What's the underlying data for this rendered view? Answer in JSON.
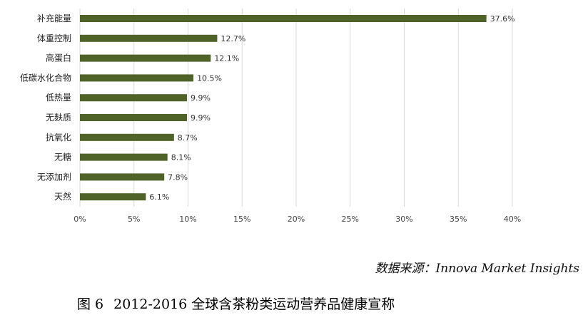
{
  "chart_data": {
    "type": "bar",
    "orientation": "horizontal",
    "categories": [
      "补充能量",
      "体重控制",
      "高蛋白",
      "低碳水化合物",
      "低热量",
      "无麸质",
      "抗氧化",
      "无糖",
      "无添加剂",
      "天然"
    ],
    "values": [
      37.6,
      12.7,
      12.1,
      10.5,
      9.9,
      9.9,
      8.7,
      8.1,
      7.8,
      6.1
    ],
    "value_labels": [
      "37.6%",
      "12.7%",
      "12.1%",
      "10.5%",
      "9.9%",
      "9.9%",
      "8.7%",
      "8.1%",
      "7.8%",
      "6.1%"
    ],
    "x_ticks": [
      "0%",
      "5%",
      "10%",
      "15%",
      "20%",
      "25%",
      "30%",
      "35%",
      "40%"
    ],
    "xlim": [
      0,
      40
    ],
    "grid": "vertical",
    "bar_color": "#4f6228"
  },
  "source_text": "数据来源：Innova Market Insights",
  "caption": {
    "figure_no": "图 6",
    "title": "2012-2016 全球含茶粉类运动营养品健康宣称"
  }
}
